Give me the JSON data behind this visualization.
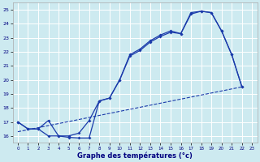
{
  "title": "Graphe des températures (°c)",
  "bg_color": "#cdeaf0",
  "grid_color": "#ffffff",
  "line_color": "#1a3aaa",
  "xlim": [
    -0.5,
    23.5
  ],
  "ylim": [
    15.5,
    25.5
  ],
  "yticks": [
    16,
    17,
    18,
    19,
    20,
    21,
    22,
    23,
    24,
    25
  ],
  "xticks": [
    0,
    1,
    2,
    3,
    4,
    5,
    6,
    7,
    8,
    9,
    10,
    11,
    12,
    13,
    14,
    15,
    16,
    17,
    18,
    19,
    20,
    21,
    22,
    23
  ],
  "line1_x": [
    0,
    1,
    2,
    3,
    4,
    5,
    6,
    7,
    8,
    9,
    10,
    11,
    12,
    13,
    14,
    15,
    16,
    17,
    18,
    19,
    20,
    21,
    22
  ],
  "line1_y": [
    17.0,
    16.5,
    16.5,
    17.1,
    16.0,
    16.0,
    16.2,
    17.1,
    18.5,
    18.7,
    20.0,
    21.8,
    22.2,
    22.8,
    23.2,
    23.5,
    23.3,
    24.8,
    24.9,
    24.8,
    23.5,
    21.8,
    19.5
  ],
  "line2_x": [
    0,
    1,
    2,
    3,
    4,
    5,
    6,
    7,
    8,
    9,
    10,
    11,
    12,
    13,
    14,
    15,
    16,
    17,
    18,
    19,
    20,
    21,
    22
  ],
  "line2_y": [
    17.0,
    16.5,
    16.5,
    16.0,
    16.0,
    15.9,
    15.85,
    15.85,
    18.5,
    18.7,
    20.0,
    21.7,
    22.1,
    22.7,
    23.1,
    23.4,
    23.3,
    24.7,
    24.9,
    24.8,
    23.5,
    21.8,
    19.5
  ],
  "line3_x": [
    0,
    22
  ],
  "line3_y": [
    16.3,
    19.5
  ]
}
